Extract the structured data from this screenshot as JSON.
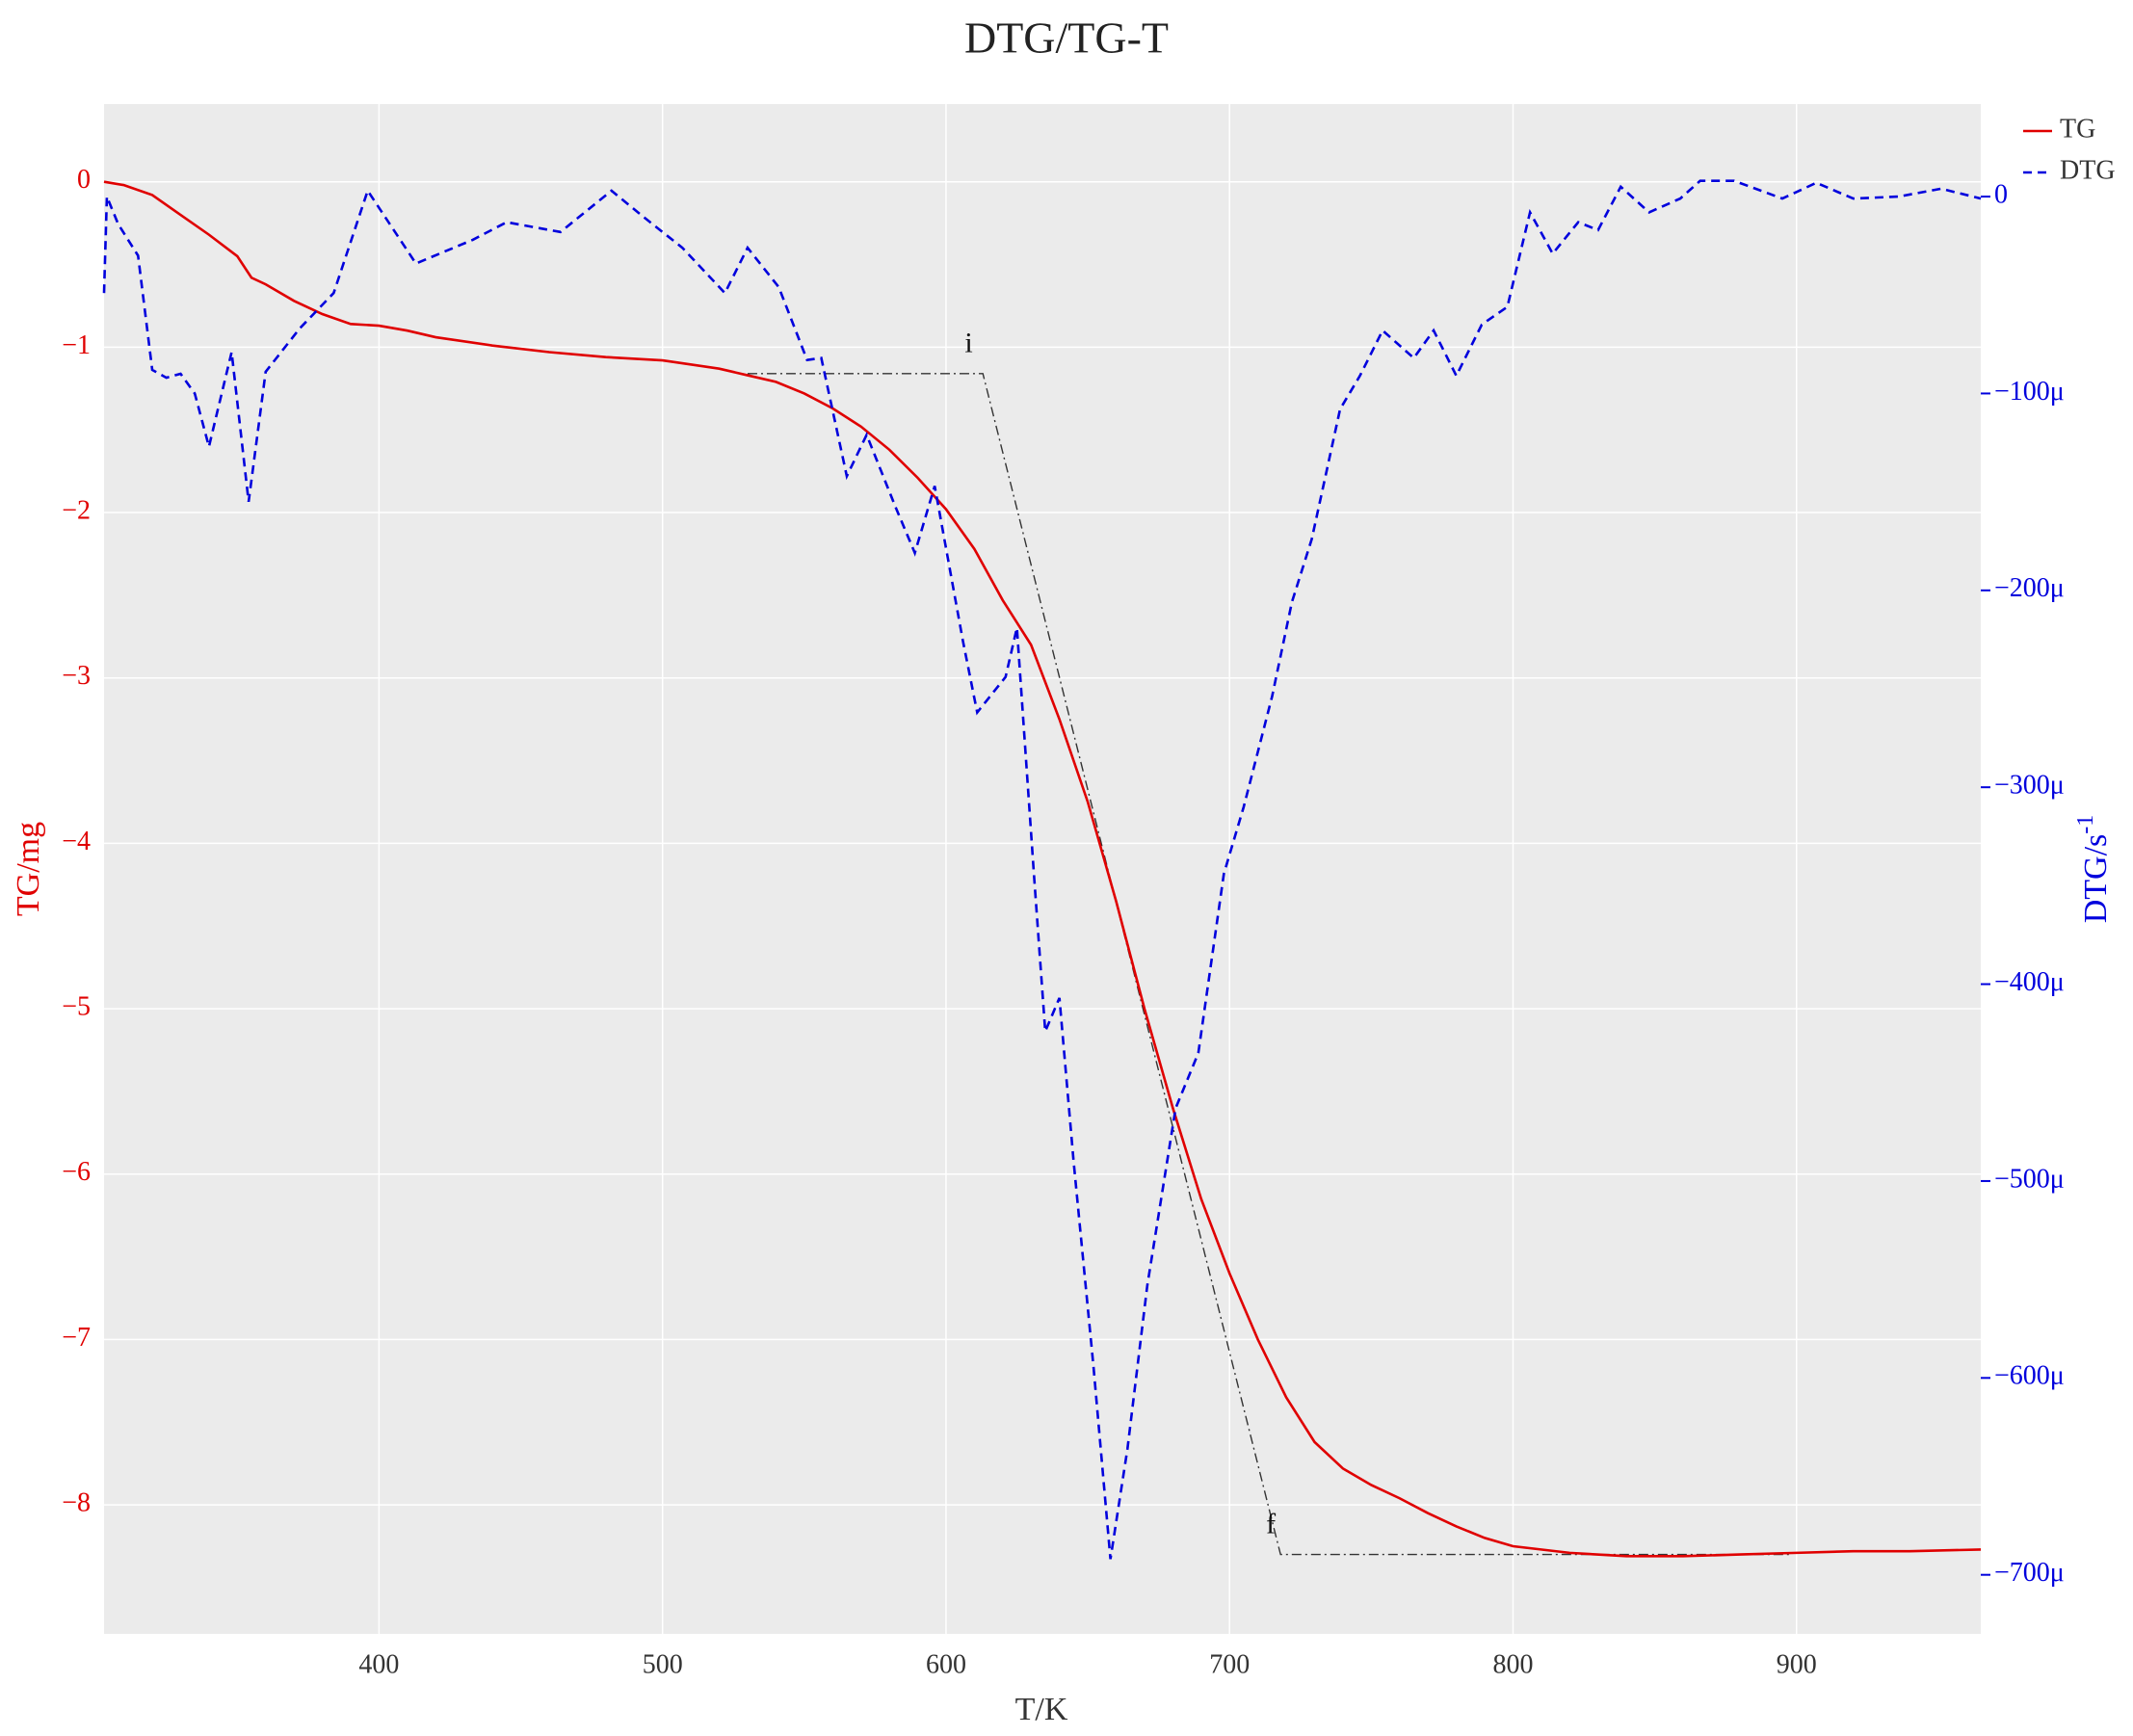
{
  "chart_data": {
    "type": "line",
    "title": "DTG/TG-T",
    "xlabel": "T/K",
    "ylabel": "TG/mg",
    "y2label": "DTG/s",
    "y2label_sup": "-1",
    "xlim": [
      303,
      965
    ],
    "ylim": [
      -8.78,
      0.47
    ],
    "y2lim": [
      -0.00073,
      4.7e-05
    ],
    "xticks": [
      400,
      500,
      600,
      700,
      800,
      900
    ],
    "yticks": [
      0,
      {
        "value": -1,
        "label": "−1"
      },
      {
        "value": -2,
        "label": "−2"
      },
      {
        "value": -3,
        "label": "−3"
      },
      {
        "value": -4,
        "label": "−4"
      },
      {
        "value": -5,
        "label": "−5"
      },
      {
        "value": -6,
        "label": "−6"
      },
      {
        "value": -7,
        "label": "−7"
      },
      {
        "value": -8,
        "label": "−8"
      }
    ],
    "y2ticks": [
      0,
      {
        "value": -0.0001,
        "label": "−100μ"
      },
      {
        "value": -0.0002,
        "label": "−200μ"
      },
      {
        "value": -0.0003,
        "label": "−300μ"
      },
      {
        "value": -0.0004,
        "label": "−400μ"
      },
      {
        "value": -0.0005,
        "label": "−500μ"
      },
      {
        "value": -0.0006,
        "label": "−600μ"
      },
      {
        "value": -0.0007,
        "label": "−700μ"
      }
    ],
    "grid": true,
    "legend": "top-right",
    "series": [
      {
        "name": "TG",
        "color": "#e00000",
        "dash": "solid",
        "x": [
          303,
          310,
          320,
          330,
          340,
          350,
          355,
          360,
          370,
          380,
          390,
          400,
          410,
          420,
          440,
          460,
          480,
          500,
          520,
          530,
          540,
          550,
          560,
          570,
          580,
          590,
          600,
          610,
          620,
          630,
          640,
          650,
          660,
          670,
          680,
          690,
          700,
          710,
          720,
          730,
          740,
          750,
          760,
          770,
          780,
          790,
          800,
          820,
          840,
          860,
          880,
          900,
          920,
          940,
          965
        ],
        "values": [
          0,
          -0.02,
          -0.08,
          -0.2,
          -0.32,
          -0.45,
          -0.58,
          -0.62,
          -0.72,
          -0.8,
          -0.86,
          -0.87,
          -0.9,
          -0.94,
          -0.99,
          -1.03,
          -1.06,
          -1.08,
          -1.13,
          -1.17,
          -1.21,
          -1.28,
          -1.37,
          -1.48,
          -1.62,
          -1.79,
          -1.98,
          -2.22,
          -2.53,
          -2.8,
          -3.25,
          -3.75,
          -4.35,
          -5.0,
          -5.6,
          -6.15,
          -6.6,
          -7.0,
          -7.35,
          -7.62,
          -7.78,
          -7.88,
          -7.96,
          -8.05,
          -8.13,
          -8.2,
          -8.25,
          -8.29,
          -8.31,
          -8.31,
          -8.3,
          -8.29,
          -8.28,
          -8.28,
          -8.27
        ]
      },
      {
        "name": "DTG",
        "color": "#0000dd",
        "dash": "dashed",
        "axis": "y2",
        "x": [
          303,
          304,
          308,
          315,
          320,
          325,
          330,
          335,
          340,
          348,
          354,
          360,
          372,
          384,
          396,
          413,
          433,
          445,
          464,
          482,
          493,
          507,
          522,
          530,
          541,
          551,
          556,
          565,
          572,
          582,
          589,
          596,
          606,
          611,
          621,
          625,
          631,
          635,
          640,
          645,
          652,
          658,
          664,
          671,
          681,
          689,
          698,
          705,
          715,
          722,
          729,
          739,
          746,
          754,
          765,
          772,
          780,
          789,
          798,
          806,
          814,
          823,
          830,
          838,
          848,
          859,
          866,
          878,
          895,
          907,
          920,
          936,
          951,
          965
        ],
        "values": [
          -4.9e-05,
          0,
          -1.4e-05,
          -3e-05,
          -8.8e-05,
          -9.2e-05,
          -9e-05,
          -0.0001,
          -0.000127,
          -7.9e-05,
          -0.000155,
          -8.9e-05,
          -6.7e-05,
          -4.9e-05,
          3e-06,
          -3.4e-05,
          -2.2e-05,
          -1.3e-05,
          -1.8e-05,
          3e-06,
          -1e-05,
          -2.6e-05,
          -4.9e-05,
          -2.6e-05,
          -4.6e-05,
          -8.3e-05,
          -8.2e-05,
          -0.000142,
          -0.000121,
          -0.000157,
          -0.000181,
          -0.000147,
          -0.000226,
          -0.000262,
          -0.000244,
          -0.000219,
          -0.000344,
          -0.000424,
          -0.000407,
          -0.00049,
          -0.000594,
          -0.000692,
          -0.000636,
          -0.000553,
          -0.000463,
          -0.000435,
          -0.000344,
          -0.00031,
          -0.000254,
          -0.000206,
          -0.000174,
          -0.000108,
          -9.1e-05,
          -6.8e-05,
          -8.2e-05,
          -6.8e-05,
          -9.1e-05,
          -6.5e-05,
          -5.6e-05,
          -8e-06,
          -2.9e-05,
          -1.3e-05,
          -1.7e-05,
          5e-06,
          -8e-06,
          -1e-06,
          8e-06,
          8e-06,
          -1e-06,
          7e-06,
          -1e-06,
          0,
          4e-06,
          -1e-06
        ]
      }
    ],
    "guide_line": {
      "x": [
        530,
        613,
        718,
        898
      ],
      "y": [
        -1.16,
        -1.16,
        -8.3,
        -8.3
      ]
    },
    "annotations": [
      {
        "text": "i",
        "x": 608,
        "y": -0.99
      },
      {
        "text": "f",
        "x": 714.6,
        "y": -8.13
      }
    ]
  }
}
